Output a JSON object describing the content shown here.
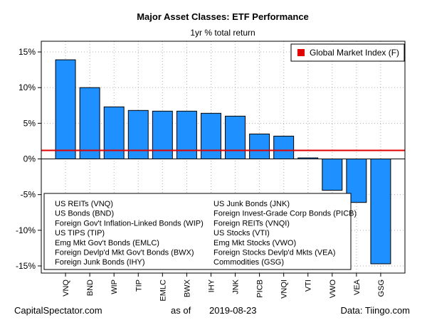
{
  "chart_data": {
    "type": "bar",
    "title": "Major Asset Classes: ETF Performance",
    "subtitle": "1yr % total return",
    "categories": [
      "VNQ",
      "BND",
      "WIP",
      "TIP",
      "EMLC",
      "BWX",
      "IHY",
      "JNK",
      "PICB",
      "VNQI",
      "VTI",
      "VWO",
      "VEA",
      "GSG"
    ],
    "values": [
      13.9,
      10.0,
      7.3,
      6.8,
      6.7,
      6.7,
      6.4,
      6.0,
      3.5,
      3.2,
      0.15,
      -4.4,
      -6.1,
      -14.7
    ],
    "ylim": [
      -16,
      16.5
    ],
    "yticks": [
      -15,
      -10,
      -5,
      0,
      5,
      10,
      15
    ],
    "ytick_labels": [
      "-15%",
      "-10%",
      "-5%",
      "0%",
      "5%",
      "10%",
      "15%"
    ],
    "bar_color": "#1E90FF",
    "grid": true,
    "reference_line": {
      "label": "Global Market Index (F)",
      "value": 1.2,
      "color": "#E00000"
    },
    "legend_position": "top-right",
    "key_left": [
      "US REITs (VNQ)",
      "US Bonds (BND)",
      "Foreign Gov't Inflation-Linked Bonds (WIP)",
      "US TIPS (TIP)",
      "Emg Mkt Gov't Bonds (EMLC)",
      "Foreign Devlp'd Mkt Gov't Bonds (BWX)",
      "Foreign Junk Bonds (IHY)"
    ],
    "key_right": [
      "US Junk Bonds (JNK)",
      "Foreign Invest-Grade Corp Bonds (PICB)",
      "Foreign REITs (VNQI)",
      "US Stocks (VTI)",
      "Emg Mkt Stocks (VWO)",
      "Foreign Stocks Devlp'd Mkts (VEA)",
      "Commodities (GSG)"
    ]
  },
  "footer": {
    "source_site": "CapitalSpectator.com",
    "as_of_label": "as of",
    "date": "2019-08-23",
    "data_source": "Data: Tiingo.com"
  }
}
